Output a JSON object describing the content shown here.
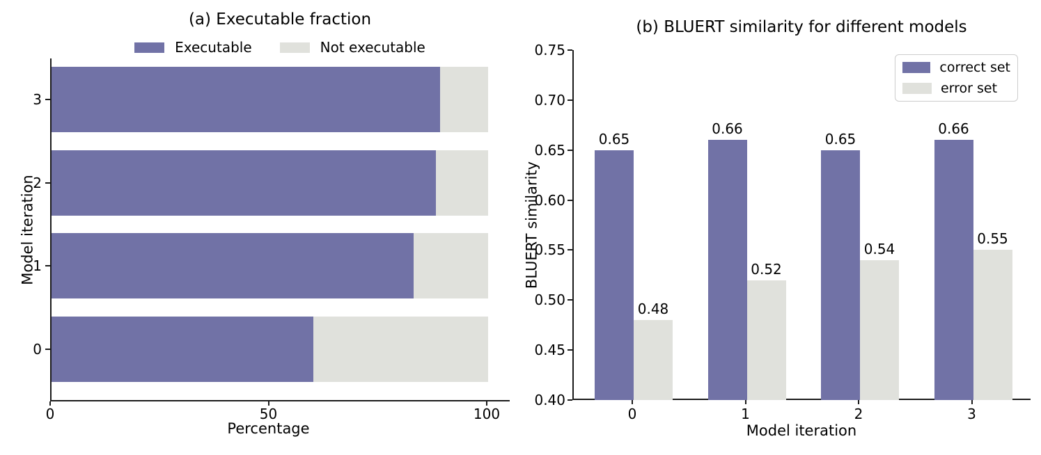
{
  "figure": {
    "background": "#ffffff"
  },
  "colors": {
    "purple": "#7172a6",
    "gray": "#e0e1dc",
    "spine": "#1a1a1a",
    "legend_border": "#cccccc"
  },
  "chart_data": [
    {
      "id": "a",
      "type": "bar",
      "orientation": "horizontal",
      "stacked": true,
      "title": "(a) Executable fraction",
      "xlabel": "Percentage",
      "ylabel": "Model iteration",
      "categories": [
        "0",
        "1",
        "2",
        "3"
      ],
      "series": [
        {
          "name": "Executable",
          "color_key": "purple",
          "values": [
            60,
            83,
            88,
            89
          ]
        },
        {
          "name": "Not executable",
          "color_key": "gray",
          "values": [
            40,
            17,
            12,
            11
          ]
        }
      ],
      "xlim": [
        0,
        105
      ],
      "xticks": [
        "0",
        "50",
        "100"
      ],
      "xtick_values": [
        0,
        50,
        100
      ],
      "grid": false,
      "legend_position": "top-center",
      "legend_frame": false
    },
    {
      "id": "b",
      "type": "bar",
      "orientation": "vertical",
      "grouped": true,
      "title": "(b) BLUERT similarity for different models",
      "xlabel": "Model iteration",
      "ylabel": "BLUERT similarity",
      "categories": [
        "0",
        "1",
        "2",
        "3"
      ],
      "series": [
        {
          "name": "correct set",
          "color_key": "purple",
          "values": [
            0.65,
            0.66,
            0.65,
            0.66
          ],
          "labels": [
            "0.65",
            "0.66",
            "0.65",
            "0.66"
          ]
        },
        {
          "name": "error set",
          "color_key": "gray",
          "values": [
            0.48,
            0.52,
            0.54,
            0.55
          ],
          "labels": [
            "0.48",
            "0.52",
            "0.54",
            "0.55"
          ]
        }
      ],
      "ylim": [
        0.4,
        0.75
      ],
      "yticks": [
        "0.40",
        "0.45",
        "0.50",
        "0.55",
        "0.60",
        "0.65",
        "0.70",
        "0.75"
      ],
      "ytick_values": [
        0.4,
        0.45,
        0.5,
        0.55,
        0.6,
        0.65,
        0.7,
        0.75
      ],
      "grid": false,
      "legend_position": "upper-right",
      "legend_frame": true
    }
  ]
}
